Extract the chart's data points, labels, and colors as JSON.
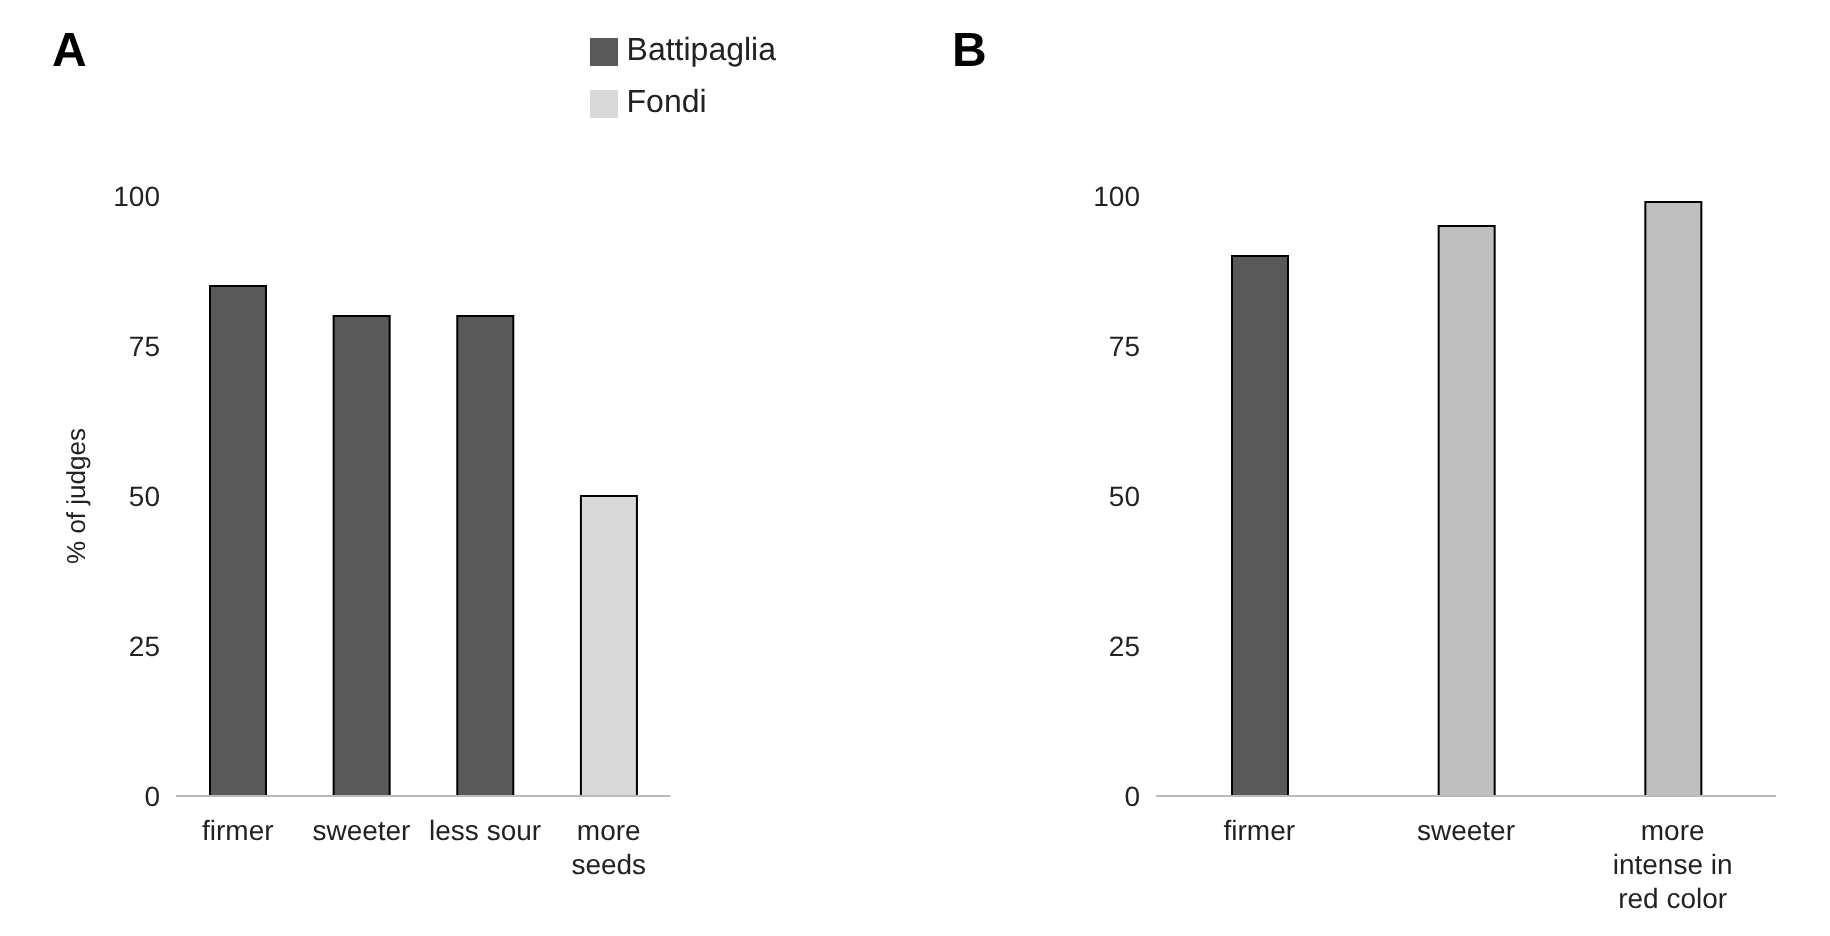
{
  "chart_data": [
    {
      "type": "bar",
      "title": "A",
      "ylabel": "% of judges",
      "categories": [
        "firmer",
        "sweeter",
        "less sour",
        "more seeds"
      ],
      "stacked": true,
      "ylim": [
        0,
        100
      ],
      "yticks": [
        0,
        25,
        50,
        75,
        100
      ],
      "legend": "top right",
      "series": [
        {
          "name": "Battipaglia",
          "color": "#595959",
          "values": [
            85,
            80,
            80,
            null
          ]
        },
        {
          "name": "Fondi",
          "color": "#d9d9d9",
          "values": [
            null,
            null,
            null,
            50
          ]
        }
      ]
    },
    {
      "type": "bar",
      "title": "B",
      "categories": [
        "firmer",
        "sweeter",
        "more intense in red color"
      ],
      "ylim": [
        0,
        100
      ],
      "yticks": [
        0,
        25,
        50,
        75,
        100
      ],
      "values": [
        90,
        95,
        99
      ],
      "colors": [
        "#595959",
        "#bfbfbf",
        "#bfbfbf"
      ]
    }
  ]
}
